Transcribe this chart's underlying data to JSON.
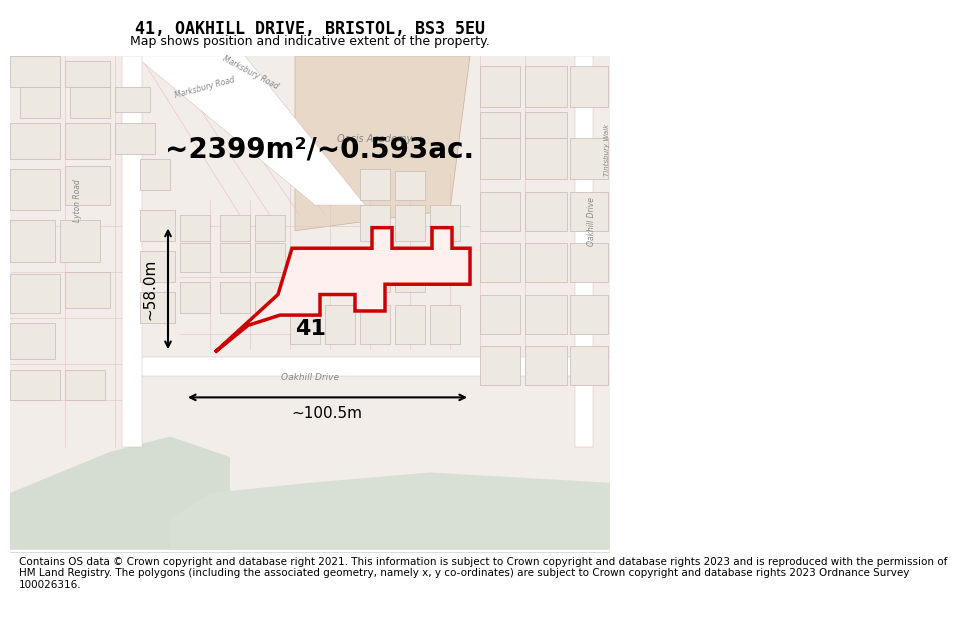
{
  "title": "41, OAKHILL DRIVE, BRISTOL, BS3 5EU",
  "subtitle": "Map shows position and indicative extent of the property.",
  "area_text": "~2399m²/~0.593ac.",
  "label_41": "41",
  "width_label": "~100.5m",
  "height_label": "~58.0m",
  "footer_text": "Contains OS data © Crown copyright and database right 2021. This information is subject to Crown copyright and database rights 2023 and is reproduced with the permission of\nHM Land Registry. The polygons (including the associated geometry, namely x, y co-ordinates) are subject to Crown copyright and database rights 2023 Ordnance Survey\n100026316.",
  "title_fontsize": 12,
  "subtitle_fontsize": 9,
  "footer_fontsize": 7.5,
  "map_bg_color": "#f2ede8",
  "road_color": "#ffffff",
  "road_outline_color": "#d4b8b8",
  "building_fill": "#ede8e0",
  "building_outline": "#c8b8b8",
  "highlight_fill": "#fff0f0",
  "plot_outline_color": "#cc0000",
  "plot_lw": 2.5,
  "annotation_color": "#000000",
  "green_area_color": "#d4ddd0",
  "footer_bg": "#ffffff",
  "academy_color": "#e8d8c8",
  "road_line_color": "#e8c0c0"
}
